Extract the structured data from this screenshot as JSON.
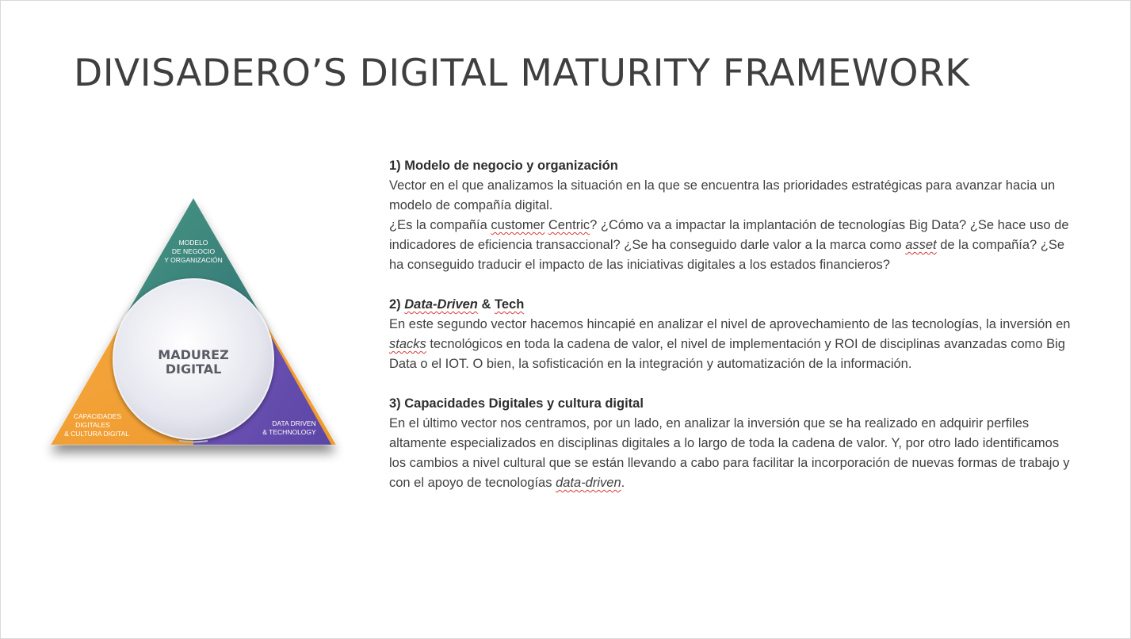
{
  "slide": {
    "title": "DIVISADERO’S DIGITAL MATURITY FRAMEWORK"
  },
  "diagram": {
    "center_line1": "MADUREZ",
    "center_line2": "DIGITAL",
    "top_label": [
      "MODELO",
      "DE NEGOCIO",
      "Y ORGANIZACIÓN"
    ],
    "left_label": [
      "CAPACIDADES",
      "DIGITALES",
      "& CULTURA DIGITAL"
    ],
    "right_label": [
      "DATA DRIVEN",
      "& TECHNOLOGY"
    ],
    "colors": {
      "top": "#3e8a80",
      "left": "#f3a33b",
      "right": "#6a4fb0",
      "circle": "#e4e6ee"
    }
  },
  "sections": [
    {
      "heading": "1) Modelo de negocio y organización",
      "p1": "Vector en el que analizamos la situación en la que se encuentra las prioridades estratégicas para avanzar hacia un modelo de compañía digital.",
      "p2_a": "¿Es la compañía ",
      "p2_b": "customer",
      "p2_c": " ",
      "p2_d": "Centric",
      "p2_e": "? ¿Cómo va a impactar la implantación de tecnologías Big Data? ¿Se hace uso de indicadores de eficiencia transaccional? ¿Se ha conseguido darle valor a la marca como ",
      "p2_f": "asset",
      "p2_g": " de la compañía? ¿Se ha conseguido traducir el impacto de las iniciativas digitales a los estados financieros?"
    },
    {
      "heading_num": "2) ",
      "heading_a": "Data-Driven",
      "heading_b": " & ",
      "heading_c": "Tech",
      "p1_a": "En este segundo vector hacemos hincapié en analizar el nivel de aprovechamiento de las tecnologías, la inversión en ",
      "p1_b": "stacks",
      "p1_c": " tecnológicos en toda la cadena de valor, el nivel de implementación y ROI de disciplinas avanzadas como Big Data o el IOT. O bien, la sofisticación en la integración y automatización de la información."
    },
    {
      "heading": "3) Capacidades Digitales y cultura digital",
      "p1_a": "En el último vector nos centramos, por un lado, en analizar la inversión que se ha realizado en adquirir perfiles altamente especializados en disciplinas digitales a lo largo de toda la cadena de valor. Y, por otro lado identificamos los cambios a nivel cultural que se están llevando a cabo para facilitar la incorporación de nuevas formas de trabajo y con el apoyo de tecnologías ",
      "p1_b": "data-driven",
      "p1_c": "."
    }
  ]
}
